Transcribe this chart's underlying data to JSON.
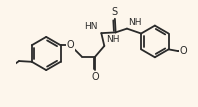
{
  "bg_color": "#fdf6ec",
  "bond_color": "#2a2a2a",
  "text_color": "#2a2a2a",
  "bond_lw": 1.3,
  "font_size": 6.5,
  "fig_w": 1.98,
  "fig_h": 1.07,
  "dpi": 100,
  "xlim": [
    -0.5,
    10.5
  ],
  "ylim": [
    -3.5,
    3.5
  ]
}
